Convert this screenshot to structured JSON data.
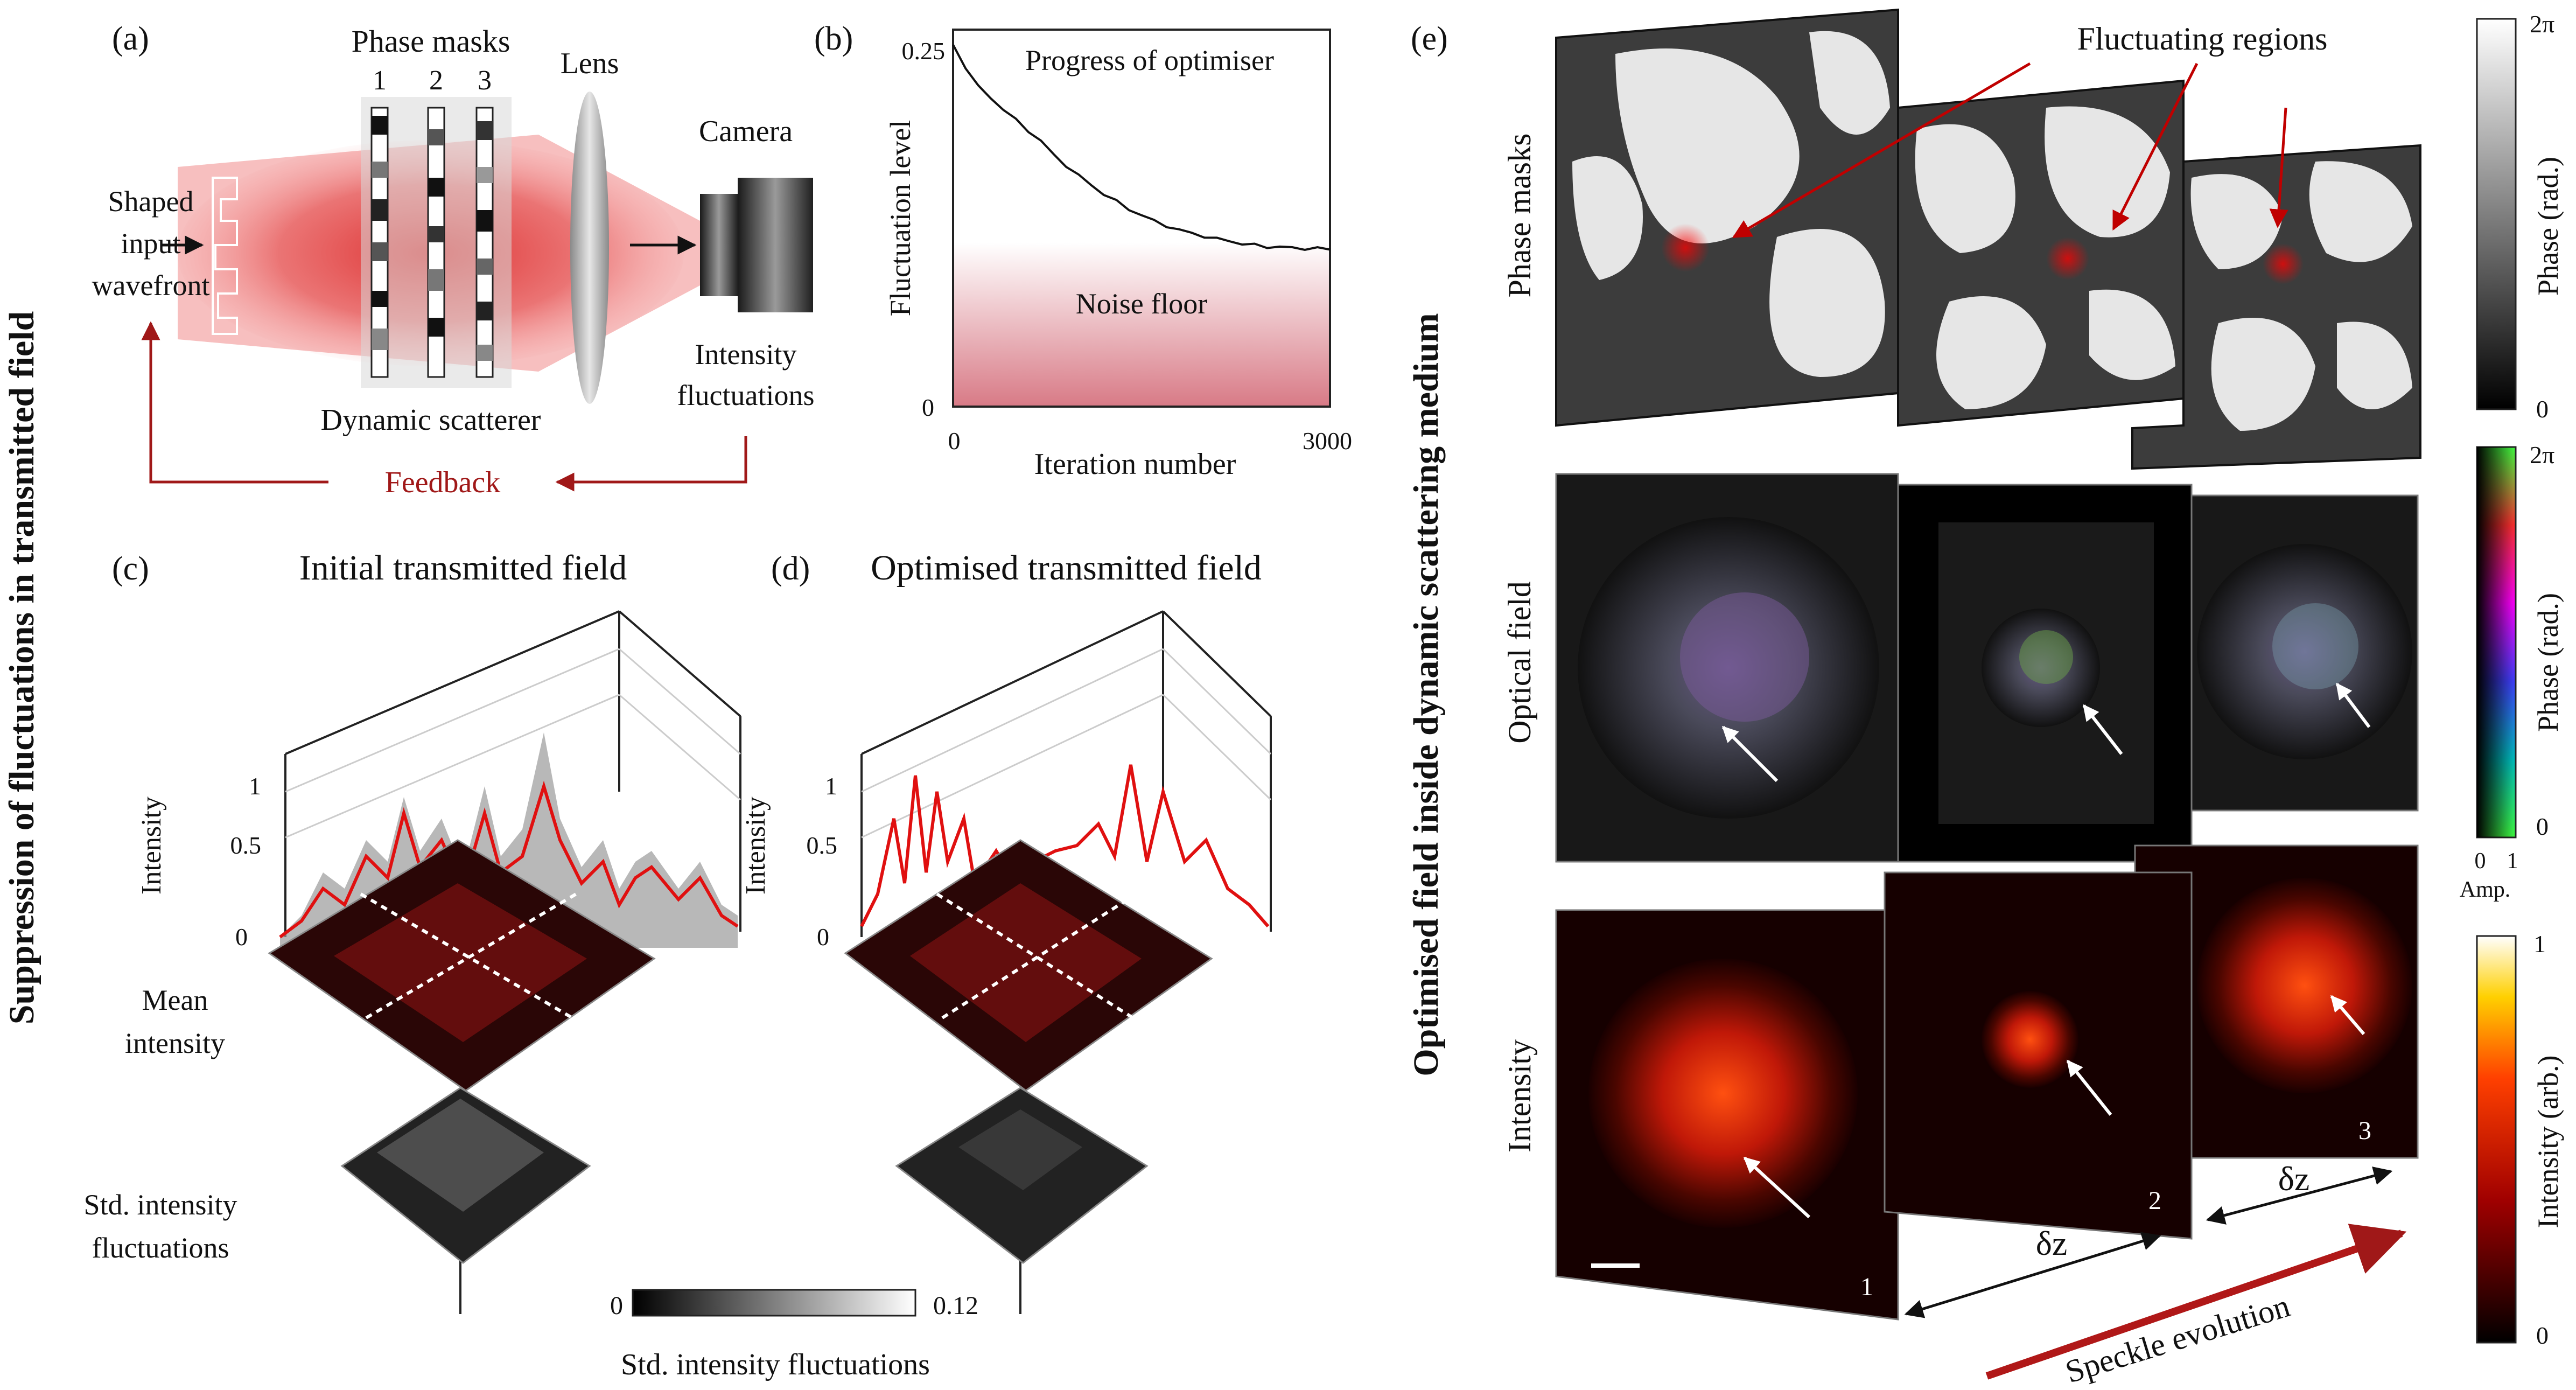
{
  "panel_labels": {
    "a": "(a)",
    "b": "(b)",
    "c": "(c)",
    "d": "(d)",
    "e": "(e)"
  },
  "vertical_titles": {
    "left": "Suppression of fluctuations in transmitted field",
    "right": "Optimised field inside dynamic scattering medium"
  },
  "panel_a": {
    "phase_masks": "Phase masks",
    "mask_numbers": [
      "1",
      "2",
      "3"
    ],
    "lens": "Lens",
    "camera": "Camera",
    "input_lines": [
      "Shaped",
      "input",
      "wavefront"
    ],
    "scatterer": "Dynamic scatterer",
    "fluct_lines": [
      "Intensity",
      "fluctuations"
    ],
    "feedback": "Feedback"
  },
  "panel_b": {
    "title_top": "Progress of optimiser",
    "noise_floor": "Noise floor",
    "ylabel": "Fluctuation level",
    "xlabel": "Iteration number",
    "y_ticks": [
      "0.25",
      "0"
    ],
    "x_ticks": [
      "0",
      "3000"
    ]
  },
  "chart_data": {
    "type": "line",
    "title": "Progress of optimiser",
    "xlabel": "Iteration number",
    "ylabel": "Fluctuation level",
    "xlim": [
      0,
      3000
    ],
    "ylim": [
      0,
      0.25
    ],
    "noise_floor": 0.115,
    "x": [
      0,
      100,
      200,
      300,
      400,
      500,
      600,
      700,
      800,
      900,
      1000,
      1100,
      1200,
      1300,
      1400,
      1500,
      1600,
      1700,
      1800,
      1900,
      2000,
      2100,
      2200,
      2300,
      2400,
      2500,
      2600,
      2700,
      2800,
      2900,
      3000
    ],
    "values": [
      0.24,
      0.225,
      0.212,
      0.205,
      0.197,
      0.19,
      0.183,
      0.176,
      0.167,
      0.16,
      0.153,
      0.147,
      0.141,
      0.136,
      0.131,
      0.127,
      0.123,
      0.12,
      0.117,
      0.115,
      0.113,
      0.111,
      0.11,
      0.108,
      0.107,
      0.106,
      0.106,
      0.105,
      0.105,
      0.105,
      0.104
    ]
  },
  "panel_c": {
    "title": "Initial transmitted field",
    "ylabel": "Intensity",
    "ticks": [
      "1",
      "0.5",
      "0"
    ],
    "mean_lines": [
      "Mean",
      "intensity"
    ],
    "std_lines": [
      "Std. intensity",
      "fluctuations"
    ]
  },
  "panel_d": {
    "title": "Optimised transmitted field",
    "ylabel": "Intensity",
    "ticks": [
      "1",
      "0.5",
      "0"
    ]
  },
  "std_colorbar": {
    "min": "0",
    "max": "0.12",
    "label": "Std. intensity fluctuations"
  },
  "panel_e": {
    "row_labels": [
      "Phase masks",
      "Optical field",
      "Intensity"
    ],
    "fluct_regions": "Fluctuating regions",
    "plane_numbers": [
      "1",
      "2",
      "3"
    ],
    "dz": "δz",
    "speckle": "Speckle evolution"
  },
  "colorbars": {
    "phase": {
      "top": "2π",
      "bottom": "0",
      "label": "Phase (rad.)"
    },
    "optical": {
      "top": "2π",
      "bottom": "0",
      "label": "Phase (rad.)",
      "amp_ticks": [
        "0",
        "1"
      ],
      "amp_label": "Amp."
    },
    "intensity": {
      "top": "1",
      "bottom": "0",
      "label": "Intensity (arb.)"
    }
  },
  "colors": {
    "accent": "#c00000",
    "feedback": "#a01818",
    "axis": "#222222"
  }
}
